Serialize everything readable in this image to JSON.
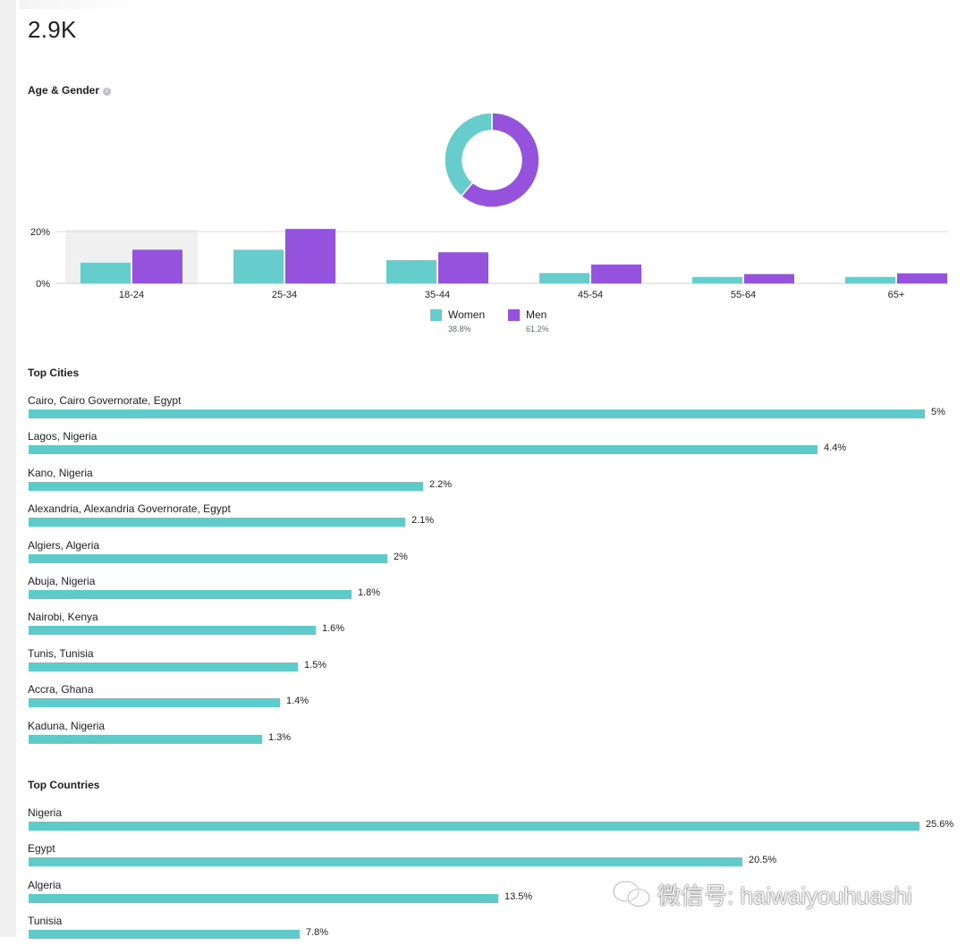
{
  "total_label": "2.9K",
  "age_gender": {
    "title": "Age & Gender",
    "info_icon": "info-icon",
    "chart_data": {
      "type": "bar",
      "categories": [
        "18-24",
        "25-34",
        "35-44",
        "45-54",
        "55-64",
        "65+"
      ],
      "series": [
        {
          "name": "Women",
          "color": "#66cccc",
          "values": [
            8,
            13,
            9,
            4,
            2.5,
            2.5
          ]
        },
        {
          "name": "Men",
          "color": "#9553dd",
          "values": [
            13,
            21,
            12,
            7.3,
            3.6,
            3.9
          ]
        }
      ],
      "yticks": [
        "20%",
        "0%"
      ],
      "ylim": [
        0,
        20
      ],
      "highlighted_category": "18-24",
      "donut": [
        {
          "name": "Women",
          "value": 38.8,
          "color": "#66cccc"
        },
        {
          "name": "Men",
          "value": 61.2,
          "color": "#9553dd"
        }
      ]
    },
    "legend": [
      {
        "label": "Women",
        "percent": "38.8%",
        "color": "#66cccc"
      },
      {
        "label": "Men",
        "percent": "61.2%",
        "color": "#9553dd"
      }
    ]
  },
  "top_cities": {
    "title": "Top Cities",
    "items": [
      {
        "name": "Cairo, Cairo Governorate, Egypt",
        "value": 5,
        "label": "5%"
      },
      {
        "name": "Lagos, Nigeria",
        "value": 4.4,
        "label": "4.4%"
      },
      {
        "name": "Kano, Nigeria",
        "value": 2.2,
        "label": "2.2%"
      },
      {
        "name": "Alexandria, Alexandria Governorate, Egypt",
        "value": 2.1,
        "label": "2.1%"
      },
      {
        "name": "Algiers, Algeria",
        "value": 2,
        "label": "2%"
      },
      {
        "name": "Abuja, Nigeria",
        "value": 1.8,
        "label": "1.8%"
      },
      {
        "name": "Nairobi, Kenya",
        "value": 1.6,
        "label": "1.6%"
      },
      {
        "name": "Tunis, Tunisia",
        "value": 1.5,
        "label": "1.5%"
      },
      {
        "name": "Accra, Ghana",
        "value": 1.4,
        "label": "1.4%"
      },
      {
        "name": "Kaduna, Nigeria",
        "value": 1.3,
        "label": "1.3%"
      }
    ]
  },
  "top_countries": {
    "title": "Top Countries",
    "items": [
      {
        "name": "Nigeria",
        "value": 25.6,
        "label": "25.6%"
      },
      {
        "name": "Egypt",
        "value": 20.5,
        "label": "20.5%"
      },
      {
        "name": "Algeria",
        "value": 13.5,
        "label": "13.5%"
      },
      {
        "name": "Tunisia",
        "value": 7.8,
        "label": "7.8%"
      }
    ]
  },
  "colors": {
    "bar": "#5ecaca",
    "women": "#66cccc",
    "men": "#9553dd"
  },
  "watermark": {
    "text": "微信号: haiwaiyouhuashi",
    "icon": "wechat-icon"
  }
}
